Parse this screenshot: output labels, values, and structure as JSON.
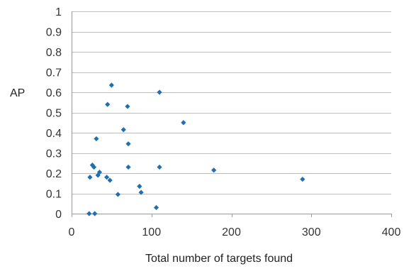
{
  "chart_data": {
    "type": "scatter",
    "title": "",
    "xlabel": "Total number of targets found",
    "ylabel": "AP",
    "xlim": [
      0,
      400
    ],
    "ylim": [
      0,
      1
    ],
    "x_ticks": [
      0,
      100,
      200,
      300,
      400
    ],
    "x_tick_labels": [
      "0",
      "100",
      "200",
      "300",
      "400"
    ],
    "y_ticks": [
      0,
      0.1,
      0.2,
      0.3,
      0.4,
      0.5,
      0.6,
      0.7,
      0.8,
      0.9,
      1
    ],
    "y_tick_labels": [
      "0",
      "0.1",
      "0.2",
      "0.3",
      "0.4",
      "0.5",
      "0.6",
      "0.7",
      "0.8",
      "0.9",
      "1"
    ],
    "grid": "horizontal",
    "legend": "none",
    "marker": "diamond",
    "marker_color": "#1f6fb5",
    "points": [
      {
        "x": 22,
        "y": 0.0
      },
      {
        "x": 29,
        "y": 0.0
      },
      {
        "x": 23,
        "y": 0.18
      },
      {
        "x": 26,
        "y": 0.24
      },
      {
        "x": 28,
        "y": 0.23
      },
      {
        "x": 31,
        "y": 0.37
      },
      {
        "x": 33,
        "y": 0.19
      },
      {
        "x": 35,
        "y": 0.205
      },
      {
        "x": 44,
        "y": 0.18
      },
      {
        "x": 45,
        "y": 0.54
      },
      {
        "x": 48,
        "y": 0.165
      },
      {
        "x": 50,
        "y": 0.635
      },
      {
        "x": 58,
        "y": 0.095
      },
      {
        "x": 65,
        "y": 0.415
      },
      {
        "x": 70,
        "y": 0.53
      },
      {
        "x": 71,
        "y": 0.345
      },
      {
        "x": 71,
        "y": 0.23
      },
      {
        "x": 85,
        "y": 0.135
      },
      {
        "x": 87,
        "y": 0.105
      },
      {
        "x": 106,
        "y": 0.03
      },
      {
        "x": 110,
        "y": 0.6
      },
      {
        "x": 110,
        "y": 0.23
      },
      {
        "x": 140,
        "y": 0.45
      },
      {
        "x": 178,
        "y": 0.215
      },
      {
        "x": 289,
        "y": 0.17
      }
    ]
  }
}
